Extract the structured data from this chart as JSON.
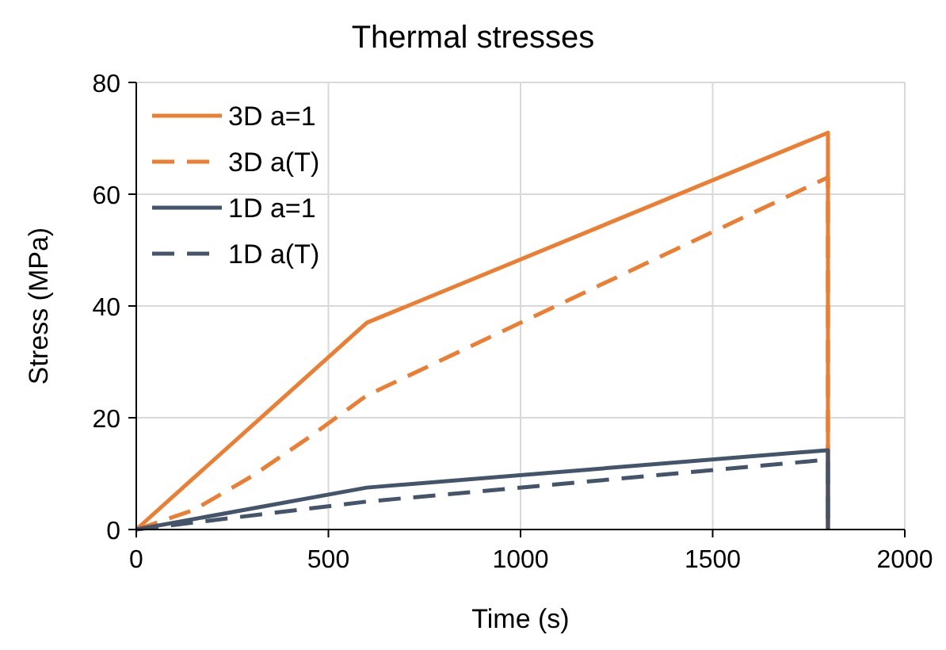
{
  "chart_data": {
    "type": "line",
    "title": "Thermal stresses",
    "xlabel": "Time (s)",
    "ylabel": "Stress (MPa)",
    "xlim": [
      0,
      2000
    ],
    "xticks": [
      0,
      500,
      1000,
      1500,
      2000
    ],
    "ylim": [
      0,
      80
    ],
    "yticks": [
      0,
      20,
      40,
      60,
      80
    ],
    "grid": true,
    "legend": "top left",
    "marker": "none",
    "series": [
      {
        "name": "3D a=1",
        "color": "#ed7d31",
        "line_style": "solid",
        "x": [
          0,
          600,
          1800,
          1800
        ],
        "values": [
          0,
          37,
          71,
          0
        ]
      },
      {
        "name": "3D a(T)",
        "color": "#ed7d31",
        "line_style": "dashed",
        "x": [
          0,
          150,
          300,
          450,
          600,
          1800,
          1800
        ],
        "values": [
          0,
          3.5,
          9.5,
          16.5,
          24,
          63,
          0
        ]
      },
      {
        "name": "1D a=1",
        "color": "#44546a",
        "line_style": "solid",
        "x": [
          0,
          600,
          1800,
          1800
        ],
        "values": [
          0,
          7.5,
          14.2,
          0
        ]
      },
      {
        "name": "1D a(T)",
        "color": "#44546a",
        "line_style": "dashed",
        "x": [
          0,
          600,
          1800,
          1800
        ],
        "values": [
          0,
          5,
          12.5,
          0
        ]
      }
    ]
  }
}
